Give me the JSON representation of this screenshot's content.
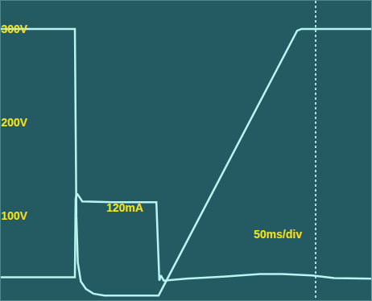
{
  "chart_data": {
    "type": "line",
    "annotations": [
      "120mA",
      "50ms/div"
    ],
    "xlim": [
      0,
      500
    ],
    "xticks": [
      425
    ],
    "ylim": [
      10,
      330
    ],
    "yticks": [
      {
        "value": 100,
        "label": "100V"
      },
      {
        "value": 200,
        "label": "200V"
      },
      {
        "value": 300,
        "label": "300V"
      }
    ],
    "y2lim": [
      -30,
      428
    ],
    "y2ticks": [],
    "grid": "x",
    "tick_labels": "y",
    "series": [
      {
        "color": "#b8f4f2",
        "x": [
          0,
          100,
          101,
          102,
          104,
          108,
          115,
          125,
          140,
          213,
          400,
          406,
          500
        ],
        "values": [
          300,
          300,
          200,
          100,
          50,
          30,
          22,
          17,
          15,
          15,
          298,
          300,
          300
        ]
      },
      {
        "color": "#b8f4f2",
        "axis": "y2",
        "x": [
          0,
          100,
          101,
          103,
          106,
          110,
          150,
          210,
          212,
          214,
          216,
          220,
          250,
          300,
          350,
          380,
          420,
          450,
          500
        ],
        "values": [
          5,
          5,
          125,
          133,
          128,
          121,
          120,
          120,
          60,
          0,
          8,
          0,
          3,
          6,
          10,
          10,
          8,
          4,
          3
        ]
      }
    ]
  }
}
